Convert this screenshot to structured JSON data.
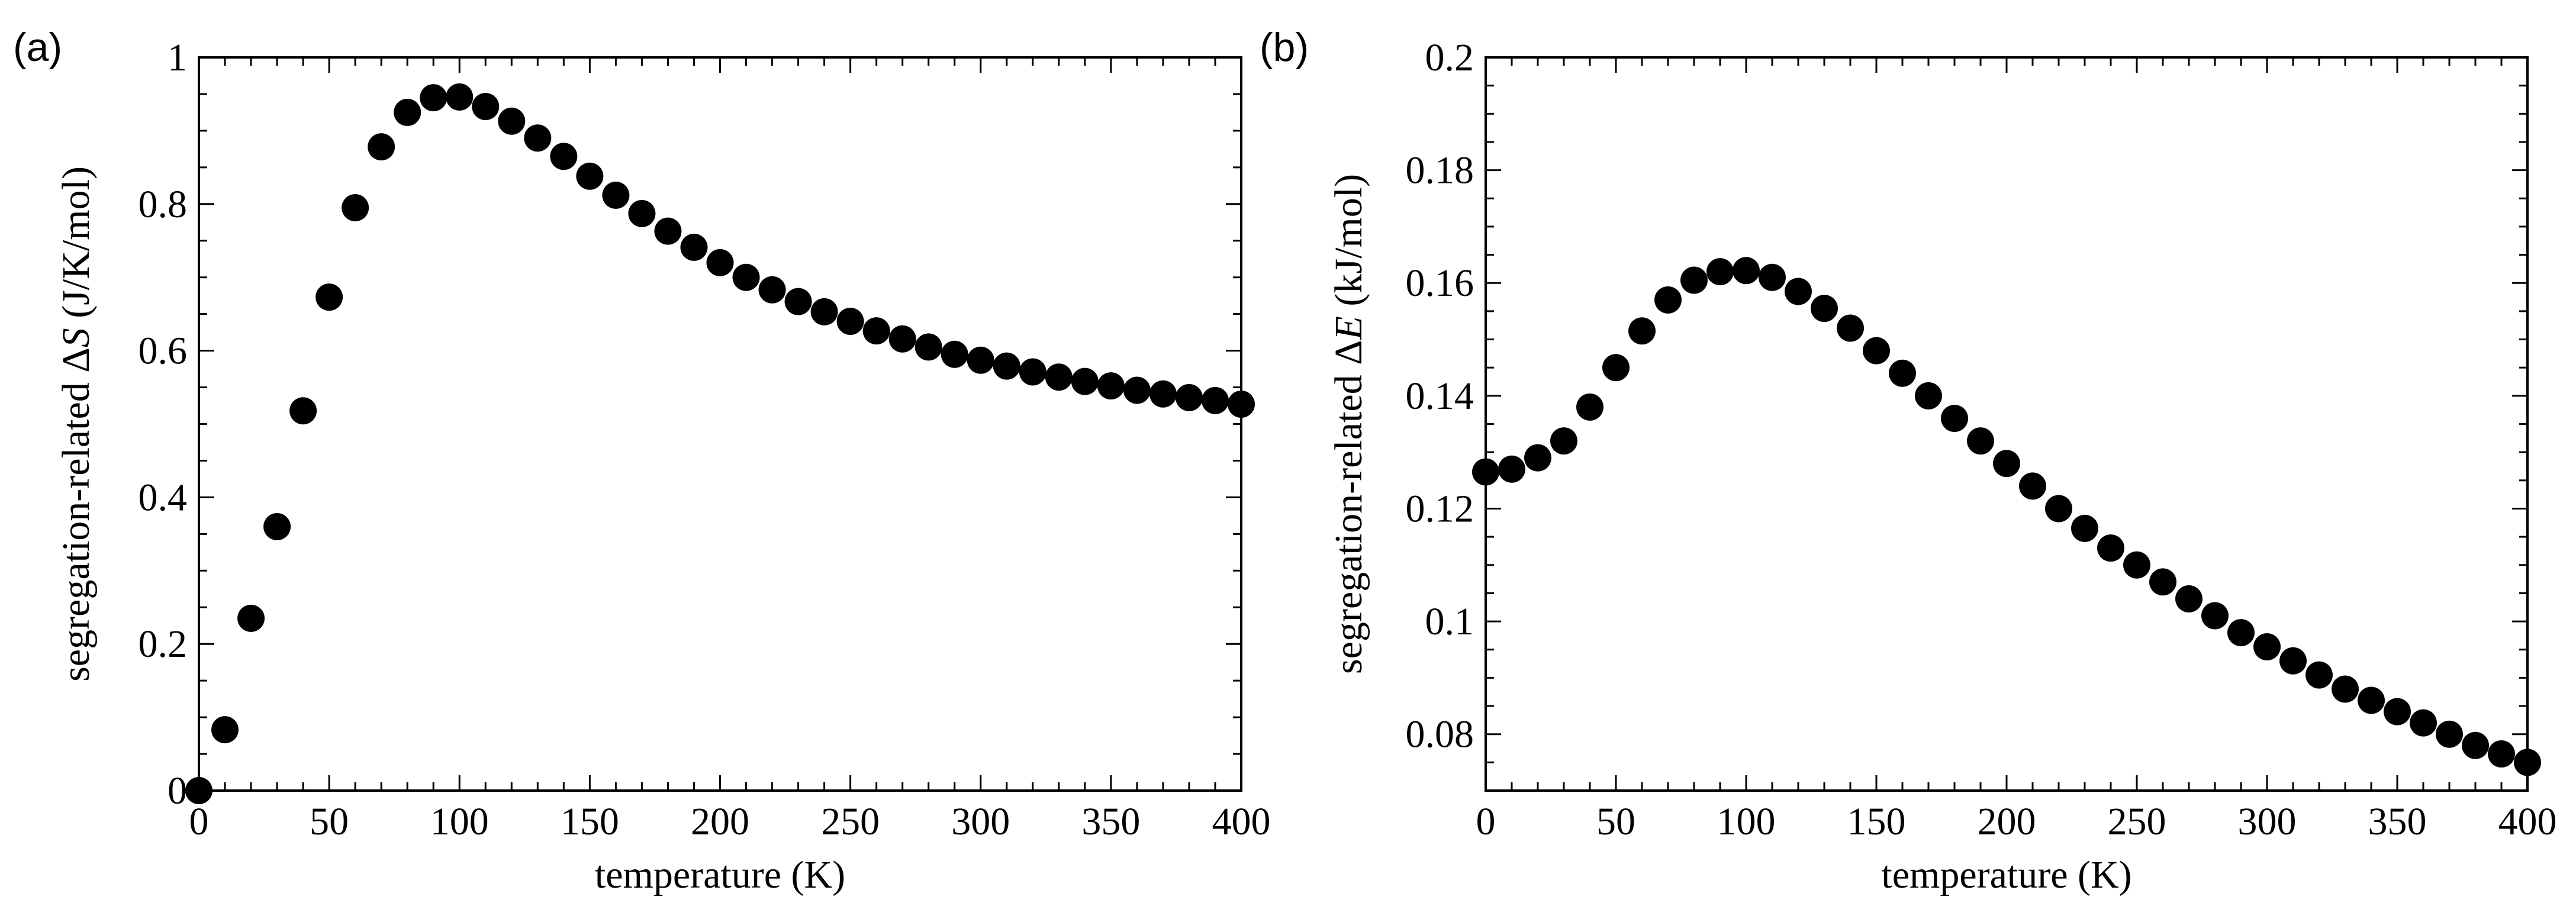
{
  "chart_data": [
    {
      "type": "scatter",
      "panel_label": "(a)",
      "xlabel": "temperature (K)",
      "ylabel_prefix": "segregation-related Δ",
      "ylabel_symbol": "S",
      "ylabel_suffix": " (J/K/mol)",
      "xlim": [
        0,
        400
      ],
      "ylim": [
        0,
        1
      ],
      "xticks": [
        0,
        50,
        100,
        150,
        200,
        250,
        300,
        350,
        400
      ],
      "xtick_labels": [
        "0",
        "50",
        "100",
        "150",
        "200",
        "250",
        "300",
        "350",
        "400"
      ],
      "yticks": [
        0,
        0.2,
        0.4,
        0.6,
        0.8,
        1
      ],
      "ytick_labels": [
        "0",
        "0.2",
        "0.4",
        "0.6",
        "0.8",
        "1"
      ],
      "x_minor_step": 10,
      "y_minor_step": 0.05,
      "marker_color": "#000000",
      "x": [
        0,
        10,
        20,
        30,
        40,
        50,
        60,
        70,
        80,
        90,
        100,
        110,
        120,
        130,
        140,
        150,
        160,
        170,
        180,
        190,
        200,
        210,
        220,
        230,
        240,
        250,
        260,
        270,
        280,
        290,
        300,
        310,
        320,
        330,
        340,
        350,
        360,
        370,
        380,
        390,
        400
      ],
      "y": [
        0.0,
        0.083,
        0.235,
        0.36,
        0.518,
        0.673,
        0.795,
        0.878,
        0.925,
        0.945,
        0.946,
        0.933,
        0.913,
        0.89,
        0.865,
        0.838,
        0.812,
        0.787,
        0.763,
        0.741,
        0.72,
        0.7,
        0.683,
        0.667,
        0.653,
        0.64,
        0.627,
        0.616,
        0.605,
        0.595,
        0.587,
        0.579,
        0.571,
        0.564,
        0.558,
        0.552,
        0.546,
        0.541,
        0.536,
        0.532,
        0.527
      ]
    },
    {
      "type": "scatter",
      "panel_label": "(b)",
      "xlabel": "temperature (K)",
      "ylabel_prefix": "segregation-related Δ",
      "ylabel_symbol": "E",
      "ylabel_suffix": " (kJ/mol)",
      "xlim": [
        0,
        400
      ],
      "ylim": [
        0.07,
        0.2
      ],
      "xticks": [
        0,
        50,
        100,
        150,
        200,
        250,
        300,
        350,
        400
      ],
      "xtick_labels": [
        "0",
        "50",
        "100",
        "150",
        "200",
        "250",
        "300",
        "350",
        "400"
      ],
      "yticks": [
        0.08,
        0.1,
        0.12,
        0.14,
        0.16,
        0.18,
        0.2
      ],
      "ytick_labels": [
        "0.08",
        "0.1",
        "0.12",
        "0.14",
        "0.16",
        "0.18",
        "0.2"
      ],
      "x_minor_step": 10,
      "y_minor_step": 0.005,
      "marker_color": "#000000",
      "x": [
        0,
        10,
        20,
        30,
        40,
        50,
        60,
        70,
        80,
        90,
        100,
        110,
        120,
        130,
        140,
        150,
        160,
        170,
        180,
        190,
        200,
        210,
        220,
        230,
        240,
        250,
        260,
        270,
        280,
        290,
        300,
        310,
        320,
        330,
        340,
        350,
        360,
        370,
        380,
        390,
        400
      ],
      "y": [
        0.1265,
        0.127,
        0.129,
        0.132,
        0.138,
        0.145,
        0.1515,
        0.157,
        0.1605,
        0.162,
        0.1622,
        0.161,
        0.1585,
        0.1555,
        0.152,
        0.148,
        0.144,
        0.14,
        0.136,
        0.132,
        0.128,
        0.124,
        0.12,
        0.1165,
        0.113,
        0.11,
        0.107,
        0.104,
        0.101,
        0.098,
        0.0955,
        0.093,
        0.0905,
        0.088,
        0.086,
        0.084,
        0.082,
        0.08,
        0.078,
        0.0765,
        0.075
      ]
    }
  ]
}
